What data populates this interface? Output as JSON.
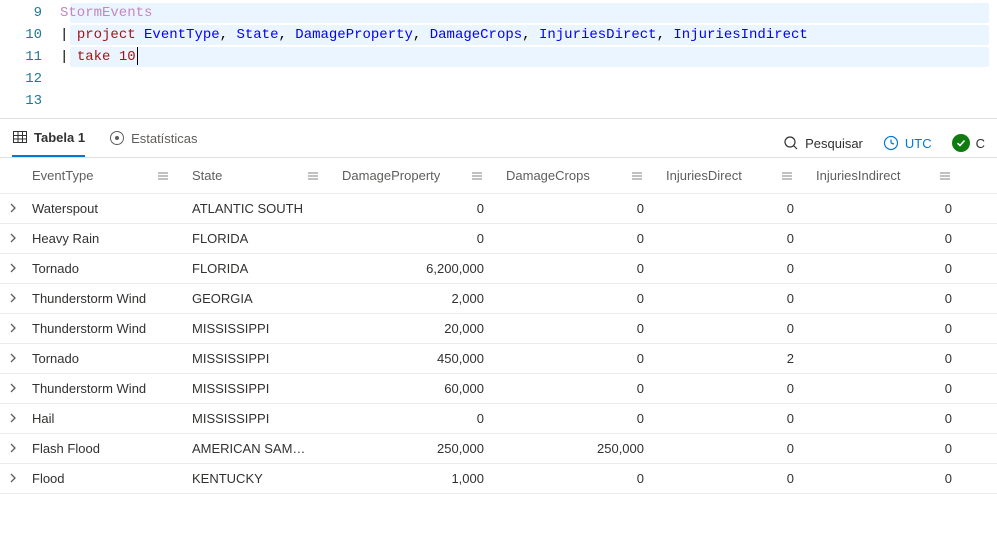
{
  "editor": {
    "lines": [
      {
        "num": "9",
        "tokens": [
          [
            "tbl",
            "StormEvents"
          ]
        ]
      },
      {
        "num": "10",
        "tokens": [
          [
            "pipe",
            "| "
          ],
          [
            "kw",
            "project "
          ],
          [
            "col",
            "EventType"
          ],
          [
            "punct",
            ", "
          ],
          [
            "col",
            "State"
          ],
          [
            "punct",
            ", "
          ],
          [
            "col",
            "DamageProperty"
          ],
          [
            "punct",
            ", "
          ],
          [
            "col",
            "DamageCrops"
          ],
          [
            "punct",
            ", "
          ],
          [
            "col",
            "InjuriesDirect"
          ],
          [
            "punct",
            ", "
          ],
          [
            "col",
            "InjuriesIndirect"
          ]
        ]
      },
      {
        "num": "11",
        "tokens": [
          [
            "pipe",
            "| "
          ],
          [
            "kw",
            "take "
          ],
          [
            "num",
            "10"
          ]
        ],
        "cursor": true
      },
      {
        "num": "12",
        "tokens": []
      },
      {
        "num": "13",
        "tokens": []
      }
    ]
  },
  "tabs": {
    "table": "Tabela 1",
    "stats": "Estatísticas"
  },
  "tools": {
    "search": "Pesquisar",
    "tz": "UTC",
    "status": "C"
  },
  "columns": [
    {
      "key": "EventType",
      "label": "EventType",
      "cls": "c-ev"
    },
    {
      "key": "State",
      "label": "State",
      "cls": "c-st"
    },
    {
      "key": "DamageProperty",
      "label": "DamageProperty",
      "cls": "c-dp",
      "num": true
    },
    {
      "key": "DamageCrops",
      "label": "DamageCrops",
      "cls": "c-dc",
      "num": true
    },
    {
      "key": "InjuriesDirect",
      "label": "InjuriesDirect",
      "cls": "c-id",
      "num": true
    },
    {
      "key": "InjuriesIndirect",
      "label": "InjuriesIndirect",
      "cls": "c-ii",
      "num": true
    }
  ],
  "rows": [
    {
      "EventType": "Waterspout",
      "State": "ATLANTIC SOUTH",
      "DamageProperty": "0",
      "DamageCrops": "0",
      "InjuriesDirect": "0",
      "InjuriesIndirect": "0"
    },
    {
      "EventType": "Heavy Rain",
      "State": "FLORIDA",
      "DamageProperty": "0",
      "DamageCrops": "0",
      "InjuriesDirect": "0",
      "InjuriesIndirect": "0"
    },
    {
      "EventType": "Tornado",
      "State": "FLORIDA",
      "DamageProperty": "6,200,000",
      "DamageCrops": "0",
      "InjuriesDirect": "0",
      "InjuriesIndirect": "0"
    },
    {
      "EventType": "Thunderstorm Wind",
      "State": "GEORGIA",
      "DamageProperty": "2,000",
      "DamageCrops": "0",
      "InjuriesDirect": "0",
      "InjuriesIndirect": "0"
    },
    {
      "EventType": "Thunderstorm Wind",
      "State": "MISSISSIPPI",
      "DamageProperty": "20,000",
      "DamageCrops": "0",
      "InjuriesDirect": "0",
      "InjuriesIndirect": "0"
    },
    {
      "EventType": "Tornado",
      "State": "MISSISSIPPI",
      "DamageProperty": "450,000",
      "DamageCrops": "0",
      "InjuriesDirect": "2",
      "InjuriesIndirect": "0"
    },
    {
      "EventType": "Thunderstorm Wind",
      "State": "MISSISSIPPI",
      "DamageProperty": "60,000",
      "DamageCrops": "0",
      "InjuriesDirect": "0",
      "InjuriesIndirect": "0"
    },
    {
      "EventType": "Hail",
      "State": "MISSISSIPPI",
      "DamageProperty": "0",
      "DamageCrops": "0",
      "InjuriesDirect": "0",
      "InjuriesIndirect": "0"
    },
    {
      "EventType": "Flash Flood",
      "State": "AMERICAN SAM…",
      "DamageProperty": "250,000",
      "DamageCrops": "250,000",
      "InjuriesDirect": "0",
      "InjuriesIndirect": "0"
    },
    {
      "EventType": "Flood",
      "State": "KENTUCKY",
      "DamageProperty": "1,000",
      "DamageCrops": "0",
      "InjuriesDirect": "0",
      "InjuriesIndirect": "0"
    }
  ]
}
